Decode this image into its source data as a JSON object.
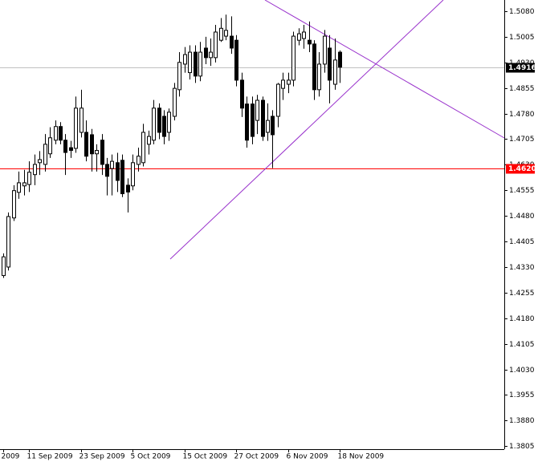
{
  "chart_data": {
    "type": "candlestick",
    "open": [
      1.4305,
      1.433,
      1.4474,
      1.4549,
      1.4568,
      1.4572,
      1.4601,
      1.4636,
      1.4631,
      1.4662,
      1.4702,
      1.4742,
      1.4702,
      1.468,
      1.4678,
      1.4725,
      1.4725,
      1.4718,
      1.4662,
      1.4702,
      1.4631,
      1.4619,
      1.4636,
      1.4643,
      1.457,
      1.4568,
      1.4631,
      1.4636,
      1.469,
      1.4702,
      1.4796,
      1.4772,
      1.4725,
      1.4772,
      1.485,
      1.4925,
      1.49,
      1.496,
      1.489,
      1.4972,
      1.4944,
      1.4944,
      1.4995,
      1.5007,
      1.5007,
      1.4995,
      1.4878,
      1.4808,
      1.4808,
      1.476,
      1.4819,
      1.4725,
      1.4772,
      1.4772,
      1.4854,
      1.4866,
      1.4878,
      1.4995,
      1.5,
      1.4995,
      1.4984,
      1.485,
      1.4925,
      1.4972,
      1.4866,
      1.496
    ],
    "high": [
      1.437,
      1.449,
      1.457,
      1.461,
      1.4615,
      1.464,
      1.466,
      1.467,
      1.472,
      1.474,
      1.476,
      1.4755,
      1.472,
      1.47,
      1.483,
      1.485,
      1.476,
      1.4735,
      1.469,
      1.472,
      1.465,
      1.466,
      1.4665,
      1.466,
      1.459,
      1.466,
      1.468,
      1.475,
      1.473,
      1.482,
      1.481,
      1.479,
      1.4795,
      1.487,
      1.496,
      1.4975,
      1.498,
      1.498,
      1.499,
      1.5005,
      1.5,
      1.504,
      1.506,
      1.507,
      1.5065,
      1.501,
      1.49,
      1.483,
      1.483,
      1.4835,
      1.483,
      1.481,
      1.479,
      1.487,
      1.49,
      1.49,
      1.502,
      1.503,
      1.504,
      1.505,
      1.4995,
      1.496,
      1.5025,
      1.501,
      1.5,
      1.4965
    ],
    "low": [
      1.4298,
      1.432,
      1.4465,
      1.453,
      1.454,
      1.455,
      1.457,
      1.46,
      1.461,
      1.465,
      1.469,
      1.469,
      1.46,
      1.465,
      1.4665,
      1.471,
      1.464,
      1.461,
      1.461,
      1.46,
      1.454,
      1.454,
      1.455,
      1.4535,
      1.449,
      1.4555,
      1.461,
      1.4625,
      1.466,
      1.469,
      1.4705,
      1.469,
      1.47,
      1.476,
      1.483,
      1.49,
      1.488,
      1.487,
      1.4875,
      1.4925,
      1.492,
      1.493,
      1.499,
      1.4995,
      1.4955,
      1.486,
      1.477,
      1.468,
      1.469,
      1.472,
      1.47,
      1.47,
      1.462,
      1.474,
      1.482,
      1.484,
      1.486,
      1.498,
      1.497,
      1.496,
      1.482,
      1.483,
      1.49,
      1.481,
      1.485,
      1.487
    ],
    "close": [
      1.436,
      1.4478,
      1.4554,
      1.4577,
      1.4577,
      1.4608,
      1.4631,
      1.4645,
      1.469,
      1.4709,
      1.4742,
      1.4702,
      1.4666,
      1.4672,
      1.4796,
      1.4796,
      1.4655,
      1.4662,
      1.4672,
      1.4631,
      1.4596,
      1.464,
      1.4584,
      1.4545,
      1.455,
      1.4636,
      1.4655,
      1.4725,
      1.4713,
      1.4796,
      1.4725,
      1.4713,
      1.4784,
      1.4854,
      1.493,
      1.4953,
      1.496,
      1.489,
      1.496,
      1.4944,
      1.496,
      1.5019,
      1.503,
      1.5024,
      1.4972,
      1.4878,
      1.4796,
      1.4702,
      1.4713,
      1.4819,
      1.4713,
      1.476,
      1.4718,
      1.4866,
      1.4878,
      1.4878,
      1.5007,
      1.5014,
      1.5019,
      1.4984,
      1.485,
      1.4925,
      1.5007,
      1.4878,
      1.4937,
      1.4916
    ],
    "xticks": [
      {
        "value": 0,
        "label": "2009"
      },
      {
        "value": 5,
        "label": "11 Sep 2009"
      },
      {
        "value": 15,
        "label": "23 Sep 2009"
      },
      {
        "value": 25,
        "label": "5 Oct 2009"
      },
      {
        "value": 35,
        "label": "15 Oct 2009"
      },
      {
        "value": 45,
        "label": "27 Oct 2009"
      },
      {
        "value": 55,
        "label": "6 Nov 2009"
      },
      {
        "value": 65,
        "label": "18 Nov 2009"
      }
    ],
    "ylim": [
      1.3796,
      1.5113
    ],
    "yticks": [
      {
        "value": 1.508,
        "label": "1.5080"
      },
      {
        "value": 1.5005,
        "label": "1.5005"
      },
      {
        "value": 1.493,
        "label": "1.4930"
      },
      {
        "value": 1.4855,
        "label": "1.4855"
      },
      {
        "value": 1.478,
        "label": "1.4780"
      },
      {
        "value": 1.4705,
        "label": "1.4705"
      },
      {
        "value": 1.463,
        "label": "1.4630"
      },
      {
        "value": 1.4555,
        "label": "1.4555"
      },
      {
        "value": 1.448,
        "label": "1.4480"
      },
      {
        "value": 1.4405,
        "label": "1.4405"
      },
      {
        "value": 1.433,
        "label": "1.4330"
      },
      {
        "value": 1.4255,
        "label": "1.4255"
      },
      {
        "value": 1.418,
        "label": "1.4180"
      },
      {
        "value": 1.4105,
        "label": "1.4105"
      },
      {
        "value": 1.403,
        "label": "1.4030"
      },
      {
        "value": 1.3955,
        "label": "1.3955"
      },
      {
        "value": 1.388,
        "label": "1.3880"
      },
      {
        "value": 1.3805,
        "label": "1.3805"
      }
    ],
    "hlines": [
      {
        "value": 1.4916,
        "label": "1.4916",
        "color": "#c0c0c0",
        "box": "#000000"
      },
      {
        "value": 1.462,
        "label": "1.4620",
        "color": "#ff0000",
        "box": "#ff0000"
      }
    ],
    "up_color": "#ffffff",
    "down_color": "#000000"
  }
}
